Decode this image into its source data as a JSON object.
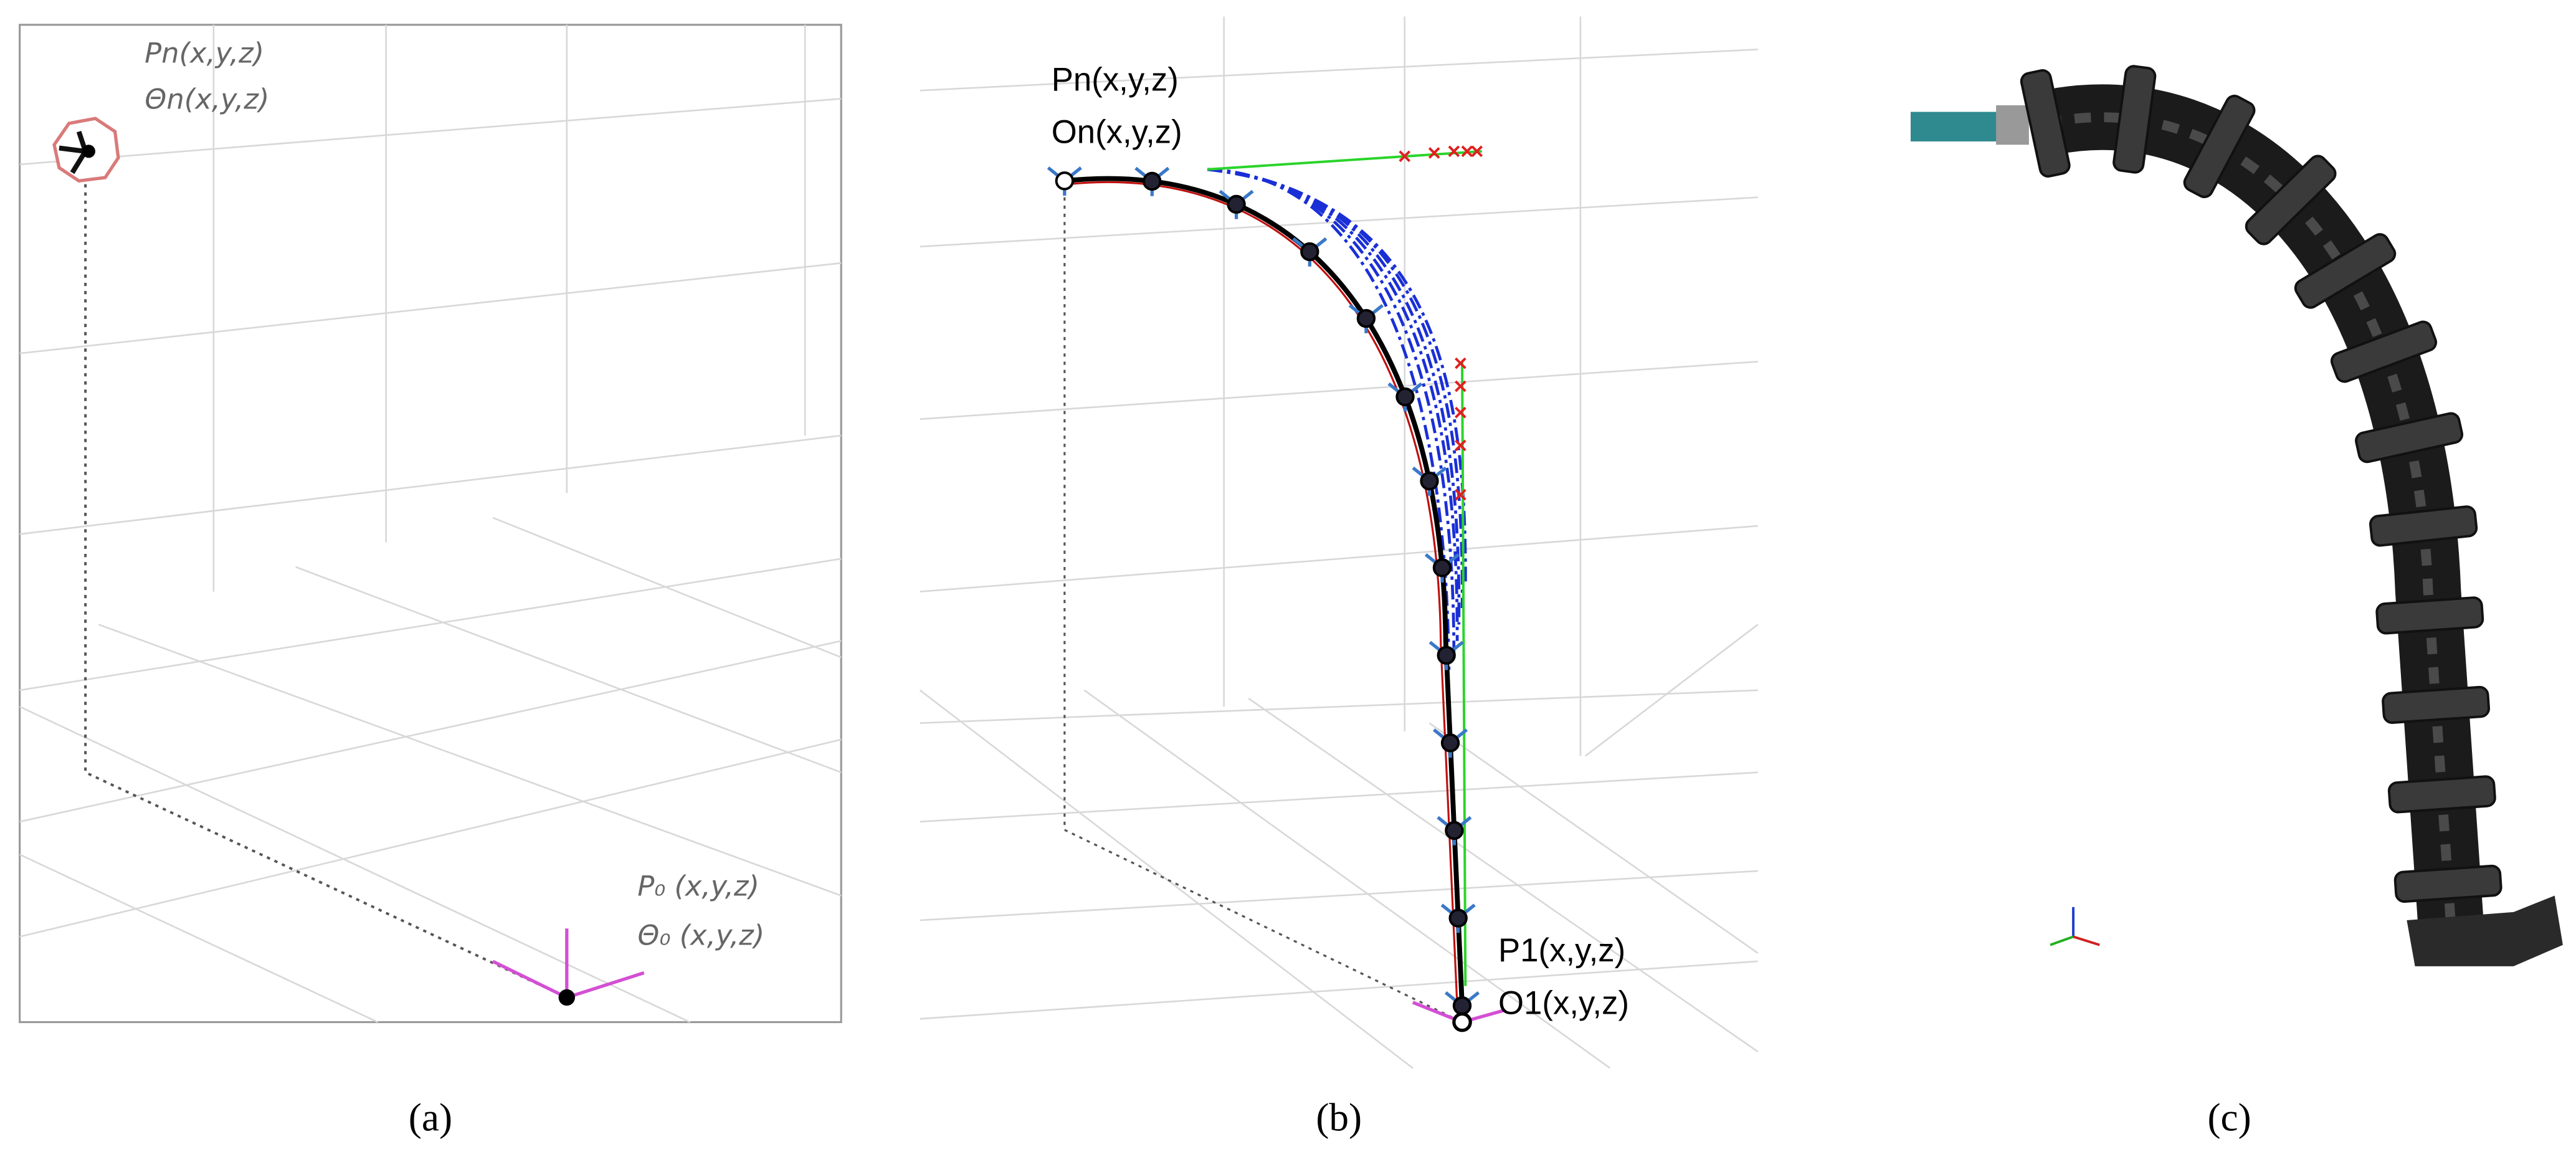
{
  "panel_a": {
    "label": "(a)",
    "end_position": "Pn(x,y,z)",
    "end_orientation": "Θn(x,y,z)",
    "base_position": "P₀ (x,y,z)",
    "base_orientation": "Θ₀ (x,y,z)"
  },
  "panel_b": {
    "label": "(b)",
    "end_position": "Pn(x,y,z)",
    "end_orientation": "On(x,y,z)",
    "base_position": "P1(x,y,z)",
    "base_orientation": "O1(x,y,z)"
  },
  "panel_c": {
    "label": "(c)"
  }
}
